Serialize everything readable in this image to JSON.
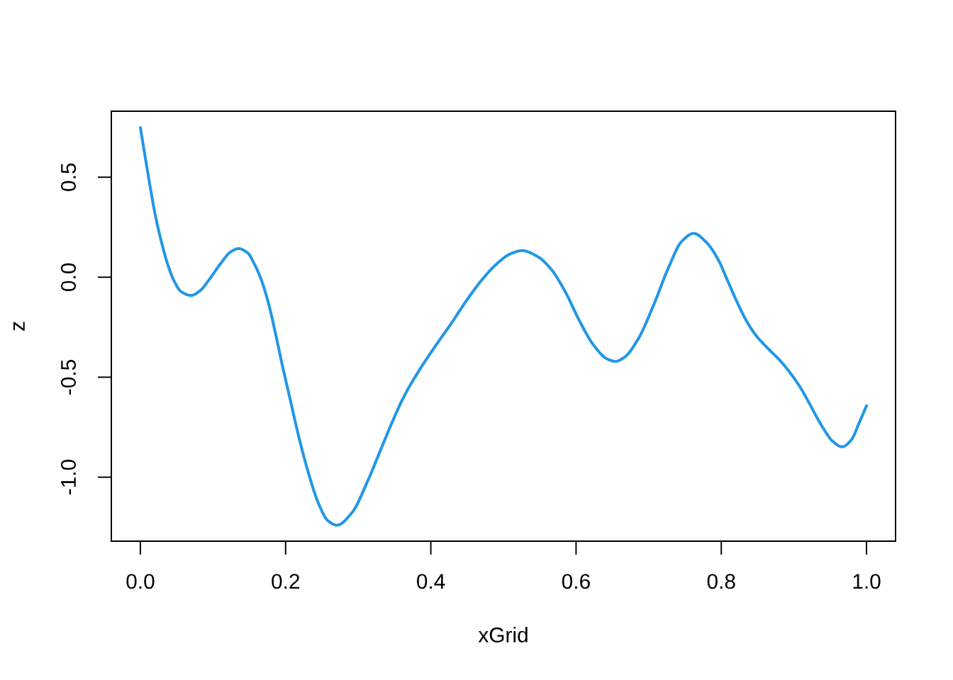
{
  "chart_data": {
    "type": "line",
    "xlabel": "xGrid",
    "ylabel": "z",
    "line_style": "solid",
    "series": [
      {
        "color": "#2297e6",
        "x": [
          0,
          0.0075,
          0.014,
          0.0205,
          0.0287,
          0.0368,
          0.0466,
          0.0564,
          0.07,
          0.0824,
          0.0955,
          0.1117,
          0.1248,
          0.1352,
          0.1476,
          0.1574,
          0.1672,
          0.177,
          0.1867,
          0.1965,
          0.2063,
          0.216,
          0.229,
          0.2463,
          0.258,
          0.2708,
          0.291,
          0.3138,
          0.33,
          0.3463,
          0.3627,
          0.3855,
          0.405,
          0.4278,
          0.4506,
          0.4702,
          0.4897,
          0.5093,
          0.5256,
          0.5467,
          0.5656,
          0.585,
          0.604,
          0.624,
          0.643,
          0.654,
          0.666,
          0.6852,
          0.7066,
          0.7278,
          0.7449,
          0.762,
          0.779,
          0.796,
          0.809,
          0.8221,
          0.835,
          0.848,
          0.8644,
          0.8807,
          0.8954,
          0.91,
          0.9196,
          0.941,
          0.9536,
          0.9665,
          0.9792,
          0.9899,
          1.0
        ],
        "values": [
          0.748,
          0.582,
          0.441,
          0.311,
          0.181,
          0.074,
          -0.02,
          -0.073,
          -0.091,
          -0.067,
          -0.008,
          0.074,
          0.128,
          0.143,
          0.122,
          0.063,
          -0.02,
          -0.138,
          -0.292,
          -0.457,
          -0.611,
          -0.765,
          -0.948,
          -1.14,
          -1.217,
          -1.24,
          -1.179,
          -1.013,
          -0.871,
          -0.729,
          -0.599,
          -0.457,
          -0.351,
          -0.233,
          -0.109,
          -0.014,
          0.063,
          0.116,
          0.133,
          0.104,
          0.04,
          -0.072,
          -0.213,
          -0.339,
          -0.409,
          -0.421,
          -0.402,
          -0.311,
          -0.141,
          0.052,
          0.176,
          0.219,
          0.176,
          0.086,
          -0.02,
          -0.127,
          -0.221,
          -0.292,
          -0.357,
          -0.416,
          -0.481,
          -0.558,
          -0.62,
          -0.759,
          -0.821,
          -0.848,
          -0.813,
          -0.728,
          -0.643
        ]
      }
    ],
    "xlim": [
      -0.04,
      1.04
    ],
    "ylim": [
      -1.32,
      0.83
    ],
    "xticks": [
      {
        "value": 0,
        "label": "0.0"
      },
      {
        "value": 0.2,
        "label": "0.2"
      },
      {
        "value": 0.4,
        "label": "0.4"
      },
      {
        "value": 0.6,
        "label": "0.6"
      },
      {
        "value": 0.8,
        "label": "0.8"
      },
      {
        "value": 1,
        "label": "1.0"
      }
    ],
    "yticks": [
      {
        "value": -1,
        "label": "-1.0"
      },
      {
        "value": -0.5,
        "label": "-0.5"
      },
      {
        "value": 0,
        "label": "0.0"
      },
      {
        "value": 0.5,
        "label": "0.5"
      }
    ]
  }
}
